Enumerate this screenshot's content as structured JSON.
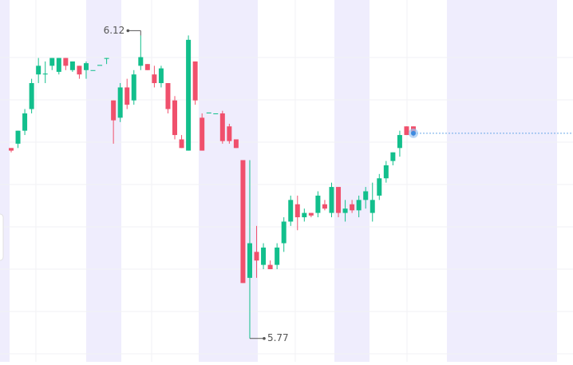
{
  "chart_data": {
    "type": "candlestick",
    "high_label": "6.12",
    "low_label": "5.77",
    "up_color": "#12bf8c",
    "down_color": "#f0506c",
    "ylim": [
      5.743,
      6.161
    ],
    "open": [
      5.99,
      5.995,
      6.01,
      6.035,
      6.075,
      6.075,
      6.085,
      6.078,
      6.094,
      6.08,
      6.085,
      6.08,
      6.08,
      6.085,
      6.093,
      6.045,
      6.025,
      6.06,
      6.045,
      6.085,
      6.087,
      6.075,
      6.065,
      6.065,
      6.045,
      6.0,
      5.987,
      6.09,
      6.025,
      6.03,
      6.03,
      6.03,
      6.015,
      6.0,
      5.976,
      5.84,
      5.87,
      5.855,
      5.855,
      5.855,
      5.88,
      5.905,
      5.925,
      5.91,
      5.915,
      5.915,
      5.925,
      5.915,
      5.945,
      5.915,
      5.925,
      5.918,
      5.93,
      5.915,
      5.935,
      5.955,
      5.975,
      5.99,
      6.015,
      6.015
    ],
    "high": [
      5.99,
      6.01,
      6.035,
      6.07,
      6.094,
      6.09,
      6.094,
      6.094,
      6.094,
      6.09,
      6.085,
      6.09,
      6.08,
      6.085,
      6.094,
      6.045,
      6.065,
      6.07,
      6.08,
      6.12,
      6.087,
      6.085,
      6.085,
      6.065,
      6.05,
      6.005,
      6.12,
      6.09,
      6.03,
      6.03,
      6.03,
      6.033,
      6.018,
      6.0,
      5.976,
      5.976,
      5.9,
      5.88,
      5.86,
      5.88,
      5.91,
      5.935,
      5.935,
      5.92,
      5.915,
      5.94,
      5.93,
      5.95,
      5.945,
      5.93,
      5.93,
      5.935,
      5.945,
      5.95,
      5.96,
      5.975,
      5.985,
      6.01,
      6.015,
      6.015
    ],
    "low": [
      5.985,
      5.99,
      6.005,
      6.03,
      6.065,
      6.065,
      6.08,
      6.075,
      6.08,
      6.078,
      6.07,
      6.07,
      6.08,
      6.085,
      6.087,
      5.995,
      6.02,
      6.035,
      6.04,
      6.08,
      6.08,
      6.06,
      6.06,
      6.03,
      6.0,
      5.99,
      5.987,
      6.04,
      5.987,
      6.03,
      6.03,
      5.995,
      5.995,
      5.99,
      5.834,
      5.77,
      5.84,
      5.85,
      5.85,
      5.85,
      5.87,
      5.9,
      5.895,
      5.905,
      5.91,
      5.91,
      5.918,
      5.91,
      5.91,
      5.905,
      5.915,
      5.91,
      5.92,
      5.905,
      5.93,
      5.95,
      5.97,
      5.98,
      6.005,
      6.003
    ],
    "close": [
      5.987,
      6.01,
      6.03,
      6.065,
      6.085,
      6.076,
      6.094,
      6.094,
      6.085,
      6.09,
      6.075,
      6.088,
      6.08,
      6.086,
      6.094,
      6.022,
      6.06,
      6.04,
      6.075,
      6.095,
      6.08,
      6.065,
      6.082,
      6.035,
      6.005,
      5.99,
      6.115,
      6.045,
      5.987,
      6.031,
      6.03,
      5.998,
      5.998,
      5.99,
      5.834,
      5.88,
      5.86,
      5.875,
      5.85,
      5.875,
      5.905,
      5.93,
      5.91,
      5.915,
      5.912,
      5.935,
      5.92,
      5.945,
      5.915,
      5.92,
      5.918,
      5.93,
      5.94,
      5.93,
      5.955,
      5.97,
      5.985,
      6.005,
      6.005,
      6.007
    ]
  }
}
